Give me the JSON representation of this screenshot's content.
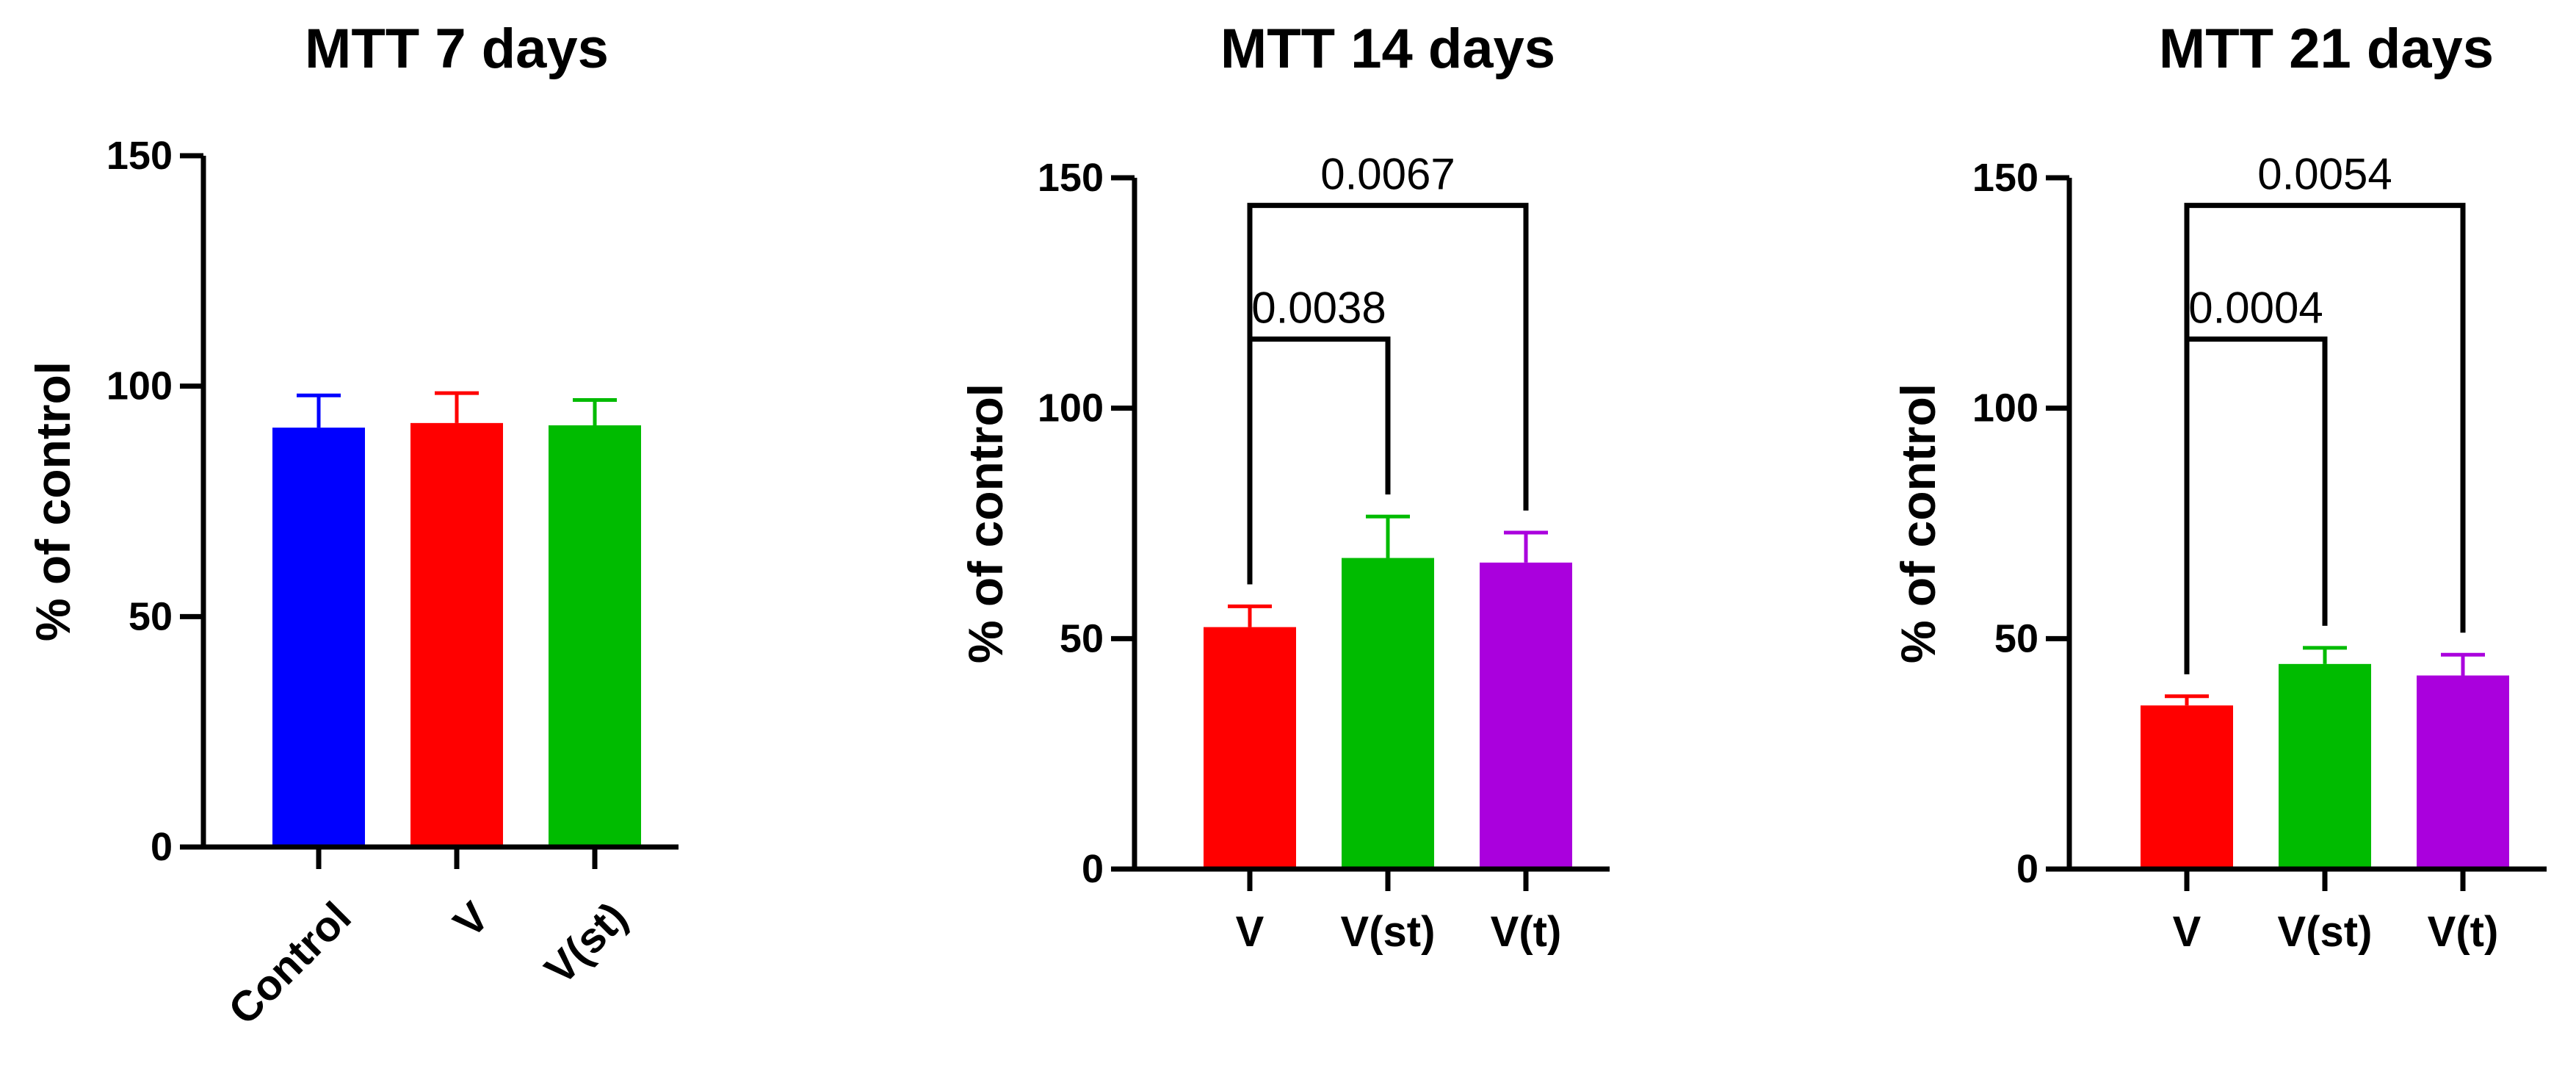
{
  "chart_data": [
    {
      "type": "bar",
      "title": "MTT 7 days",
      "ylabel": "% of control",
      "xlabel": "",
      "ylim": [
        0,
        150
      ],
      "yticks": [
        "0",
        "50",
        "100",
        "150"
      ],
      "categories": [
        "Control",
        "V",
        "V(st)"
      ],
      "values": [
        91,
        92,
        91.5
      ],
      "errors": [
        7,
        6.5,
        5.5
      ],
      "colors": [
        "#0000ff",
        "#ff0000",
        "#00bb00"
      ],
      "xtick_rotation": "rotated",
      "comparisons": []
    },
    {
      "type": "bar",
      "title": "MTT 14 days",
      "ylabel": "% of control",
      "xlabel": "",
      "ylim": [
        0,
        150
      ],
      "yticks": [
        "0",
        "50",
        "100",
        "150"
      ],
      "categories": [
        "V",
        "V(st)",
        "V(t)"
      ],
      "values": [
        52.5,
        67.5,
        66.5
      ],
      "errors": [
        4.5,
        9,
        6.5
      ],
      "colors": [
        "#ff0000",
        "#00bb00",
        "#aa00dd"
      ],
      "xtick_rotation": "horizontal",
      "comparisons": [
        {
          "from": "V",
          "to": "V(st)",
          "label": "0.0038"
        },
        {
          "from": "V",
          "to": "V(t)",
          "label": "0.0067"
        }
      ]
    },
    {
      "type": "bar",
      "title": "MTT 21 days",
      "ylabel": "% of control",
      "xlabel": "",
      "ylim": [
        0,
        150
      ],
      "yticks": [
        "0",
        "50",
        "100",
        "150"
      ],
      "categories": [
        "V",
        "V(st)",
        "V(t)"
      ],
      "values": [
        35.5,
        44.5,
        42
      ],
      "errors": [
        2,
        3.5,
        4.5
      ],
      "colors": [
        "#ff0000",
        "#00bb00",
        "#aa00dd"
      ],
      "xtick_rotation": "horizontal",
      "comparisons": [
        {
          "from": "V",
          "to": "V(st)",
          "label": "0.0004"
        },
        {
          "from": "V",
          "to": "V(t)",
          "label": "0.0054"
        }
      ]
    }
  ]
}
